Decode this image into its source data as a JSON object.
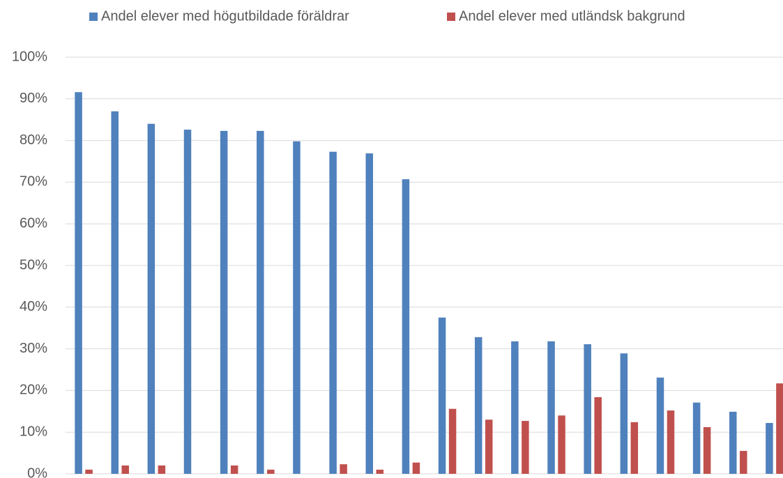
{
  "chart_data": {
    "type": "bar",
    "categories": [
      null,
      null,
      null,
      null,
      null,
      null,
      null,
      null,
      null,
      null,
      null,
      null,
      null,
      null,
      null,
      null,
      null,
      null,
      null,
      null
    ],
    "series": [
      {
        "name": "Andel elever med högutbildade föräldrar",
        "color": "#4f81bd",
        "values": [
          91.6,
          87.0,
          84.0,
          82.6,
          82.3,
          82.3,
          79.8,
          77.3,
          76.9,
          70.7,
          37.5,
          32.8,
          31.8,
          31.8,
          31.1,
          28.9,
          23.1,
          17.1,
          14.9,
          12.2
        ]
      },
      {
        "name": "Andel elever med utländsk bakgrund",
        "color": "#c0504d",
        "values": [
          1.0,
          2.0,
          2.0,
          0,
          2.0,
          1.0,
          0,
          2.3,
          1.0,
          2.7,
          15.6,
          13.0,
          12.7,
          14.0,
          18.4,
          12.4,
          15.2,
          11.2,
          5.5,
          21.7
        ]
      }
    ],
    "ylim": [
      0,
      100
    ],
    "yticks": [
      {
        "value": 0,
        "label": "0%"
      },
      {
        "value": 10,
        "label": "10%"
      },
      {
        "value": 20,
        "label": "20%"
      },
      {
        "value": 30,
        "label": "30%"
      },
      {
        "value": 40,
        "label": "40%"
      },
      {
        "value": 50,
        "label": "50%"
      },
      {
        "value": 60,
        "label": "60%"
      },
      {
        "value": 70,
        "label": "70%"
      },
      {
        "value": 80,
        "label": "80%"
      },
      {
        "value": 90,
        "label": "90%"
      },
      {
        "value": 100,
        "label": "100%"
      }
    ],
    "grid": true,
    "legend": "top"
  }
}
